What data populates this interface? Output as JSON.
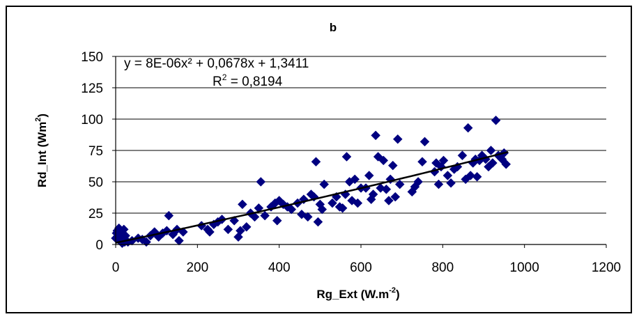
{
  "chart_data": {
    "type": "scatter",
    "title": "b",
    "xlabel": "Rg_Ext (W.m",
    "xlabel_sup": "-2",
    "xlabel_end": ")",
    "ylabel": "Rd_Int (Wm",
    "ylabel_sup": "2",
    "ylabel_end": ")",
    "xlim": [
      0,
      1200
    ],
    "ylim": [
      0,
      150
    ],
    "x_ticks": [
      "0",
      "200",
      "400",
      "600",
      "800",
      "1000",
      "1200"
    ],
    "y_ticks": [
      "0",
      "25",
      "50",
      "75",
      "100",
      "125",
      "150"
    ],
    "grid": "horizontal",
    "marker_color": "#000080",
    "trendline": {
      "type": "polynomial",
      "coefficients": [
        8e-06,
        0.0678,
        1.3411
      ],
      "equation": "y = 8E-06x² + 0,0678x + 1,3411",
      "r2_label": "R",
      "r2_sup": "2",
      "r2_value": " = 0,8194",
      "color": "#000000"
    },
    "series": [
      {
        "points": [
          [
            0,
            5
          ],
          [
            2,
            9
          ],
          [
            4,
            11
          ],
          [
            6,
            7
          ],
          [
            8,
            13
          ],
          [
            10,
            3
          ],
          [
            12,
            6
          ],
          [
            14,
            10
          ],
          [
            16,
            1
          ],
          [
            18,
            8
          ],
          [
            20,
            12
          ],
          [
            22,
            2
          ],
          [
            24,
            7
          ],
          [
            30,
            2
          ],
          [
            40,
            3
          ],
          [
            55,
            5
          ],
          [
            65,
            4
          ],
          [
            75,
            2
          ],
          [
            85,
            7
          ],
          [
            95,
            10
          ],
          [
            105,
            6
          ],
          [
            115,
            9
          ],
          [
            125,
            11
          ],
          [
            130,
            23
          ],
          [
            140,
            8
          ],
          [
            150,
            12
          ],
          [
            155,
            3
          ],
          [
            165,
            10
          ],
          [
            210,
            15
          ],
          [
            225,
            12
          ],
          [
            230,
            10
          ],
          [
            240,
            16
          ],
          [
            250,
            18
          ],
          [
            260,
            20
          ],
          [
            275,
            12
          ],
          [
            290,
            19
          ],
          [
            300,
            6
          ],
          [
            305,
            11
          ],
          [
            310,
            32
          ],
          [
            320,
            14
          ],
          [
            330,
            25
          ],
          [
            340,
            22
          ],
          [
            350,
            29
          ],
          [
            355,
            50
          ],
          [
            365,
            23
          ],
          [
            380,
            30
          ],
          [
            390,
            33
          ],
          [
            395,
            19
          ],
          [
            400,
            35
          ],
          [
            410,
            32
          ],
          [
            420,
            30
          ],
          [
            430,
            28
          ],
          [
            445,
            33
          ],
          [
            455,
            24
          ],
          [
            460,
            36
          ],
          [
            470,
            22
          ],
          [
            478,
            40
          ],
          [
            485,
            38
          ],
          [
            490,
            66
          ],
          [
            495,
            18
          ],
          [
            500,
            32
          ],
          [
            505,
            28
          ],
          [
            510,
            48
          ],
          [
            530,
            33
          ],
          [
            540,
            38
          ],
          [
            548,
            30
          ],
          [
            555,
            29
          ],
          [
            562,
            40
          ],
          [
            565,
            70
          ],
          [
            572,
            50
          ],
          [
            578,
            35
          ],
          [
            585,
            52
          ],
          [
            592,
            33
          ],
          [
            600,
            45
          ],
          [
            612,
            45
          ],
          [
            620,
            55
          ],
          [
            625,
            36
          ],
          [
            630,
            40
          ],
          [
            636,
            87
          ],
          [
            642,
            70
          ],
          [
            648,
            45
          ],
          [
            655,
            67
          ],
          [
            662,
            44
          ],
          [
            668,
            35
          ],
          [
            672,
            52
          ],
          [
            678,
            63
          ],
          [
            684,
            38
          ],
          [
            690,
            84
          ],
          [
            695,
            48
          ],
          [
            725,
            42
          ],
          [
            732,
            46
          ],
          [
            740,
            50
          ],
          [
            750,
            66
          ],
          [
            756,
            82
          ],
          [
            780,
            58
          ],
          [
            784,
            65
          ],
          [
            790,
            48
          ],
          [
            796,
            62
          ],
          [
            802,
            67
          ],
          [
            812,
            55
          ],
          [
            820,
            49
          ],
          [
            828,
            60
          ],
          [
            836,
            62
          ],
          [
            848,
            71
          ],
          [
            856,
            52
          ],
          [
            862,
            93
          ],
          [
            868,
            55
          ],
          [
            874,
            65
          ],
          [
            880,
            68
          ],
          [
            884,
            54
          ],
          [
            890,
            67
          ],
          [
            896,
            71
          ],
          [
            905,
            68
          ],
          [
            912,
            62
          ],
          [
            918,
            75
          ],
          [
            922,
            65
          ],
          [
            930,
            99
          ],
          [
            936,
            71
          ],
          [
            945,
            68
          ],
          [
            950,
            73
          ],
          [
            955,
            64
          ]
        ]
      }
    ]
  }
}
